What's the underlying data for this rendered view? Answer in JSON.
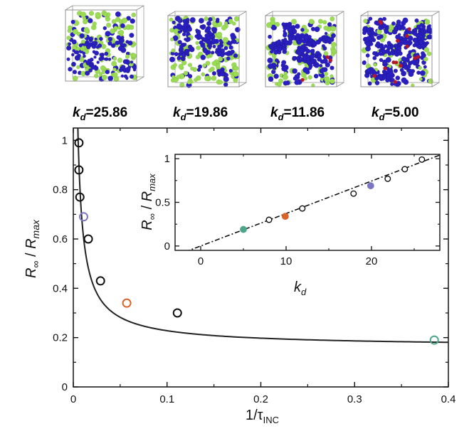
{
  "snapshots": [
    {
      "label_sym": "k",
      "label_sub": "d",
      "label_val": "=25.86",
      "kd": 25.86
    },
    {
      "label_sym": "k",
      "label_sub": "d",
      "label_val": "=19.86",
      "kd": 19.86
    },
    {
      "label_sym": "k",
      "label_sub": "d",
      "label_val": "=11.86",
      "kd": 11.86
    },
    {
      "label_sym": "k",
      "label_sub": "d",
      "label_val": "=5.00",
      "kd": 5.0
    }
  ],
  "colors": {
    "green": "#9bdc55",
    "blue": "#2a1fc0",
    "red": "#b8162a",
    "orange": "#d9622b",
    "teal": "#4fa58a",
    "violet": "#7a77c0",
    "curve": "#222222"
  },
  "chart_data": [
    {
      "type": "scatter",
      "id": "main",
      "xlabel": "1/τ",
      "xlabel_sub": "INC",
      "ylabel": "R∞ / Rmax",
      "ylabel_parts": {
        "sym": "R",
        "sub1": "∞",
        "sep": " / ",
        "sym2": "R",
        "sub2": "max"
      },
      "xlim": [
        0,
        0.4
      ],
      "ylim": [
        0,
        1.05
      ],
      "xticks": [
        0,
        0.1,
        0.2,
        0.3,
        0.4
      ],
      "xtick_labels": [
        "0",
        "0.1",
        "0.2",
        "0.3",
        "0.4"
      ],
      "yticks": [
        0,
        0.2,
        0.4,
        0.6,
        0.8,
        1
      ],
      "ytick_labels": [
        "0",
        "0.2",
        "0.4",
        "0.6",
        "0.8",
        "1"
      ],
      "points": [
        {
          "x": 0.006,
          "y": 0.99,
          "color": "black"
        },
        {
          "x": 0.006,
          "y": 0.88,
          "color": "black"
        },
        {
          "x": 0.007,
          "y": 0.77,
          "color": "black"
        },
        {
          "x": 0.011,
          "y": 0.69,
          "color": "violet"
        },
        {
          "x": 0.016,
          "y": 0.6,
          "color": "black"
        },
        {
          "x": 0.029,
          "y": 0.43,
          "color": "black"
        },
        {
          "x": 0.057,
          "y": 0.34,
          "color": "orange"
        },
        {
          "x": 0.111,
          "y": 0.3,
          "color": "black"
        },
        {
          "x": 0.385,
          "y": 0.19,
          "color": "teal"
        }
      ],
      "fit_curve": {
        "form": "a + b*x^(-c)",
        "a": 0.16,
        "b": 0.0096,
        "c": 0.85
      }
    },
    {
      "type": "scatter",
      "id": "inset",
      "xlabel": "k",
      "xlabel_sub": "d",
      "ylabel": "R∞ / Rmax",
      "ylabel_parts": {
        "sym": "R",
        "sub1": "∞",
        "sep": " / ",
        "sym2": "R",
        "sub2": "max"
      },
      "xlim": [
        -3,
        28
      ],
      "ylim": [
        -0.05,
        1.05
      ],
      "xticks": [
        0,
        10,
        20
      ],
      "xtick_labels": [
        "0",
        "10",
        "20"
      ],
      "yticks": [
        0,
        0.5,
        1
      ],
      "ytick_labels": [
        "0",
        "0.5",
        "1"
      ],
      "points": [
        {
          "x": 5.0,
          "y": 0.19,
          "color": "teal"
        },
        {
          "x": 8.0,
          "y": 0.3,
          "color": "black"
        },
        {
          "x": 9.9,
          "y": 0.34,
          "color": "orange"
        },
        {
          "x": 11.9,
          "y": 0.43,
          "color": "black"
        },
        {
          "x": 17.9,
          "y": 0.6,
          "color": "black"
        },
        {
          "x": 19.9,
          "y": 0.69,
          "color": "violet"
        },
        {
          "x": 21.9,
          "y": 0.77,
          "color": "black"
        },
        {
          "x": 23.9,
          "y": 0.88,
          "color": "black"
        },
        {
          "x": 25.9,
          "y": 0.99,
          "color": "black"
        }
      ],
      "fit_line": {
        "slope": 0.0372,
        "intercept": 0.0,
        "style": "dash-dot"
      }
    }
  ]
}
